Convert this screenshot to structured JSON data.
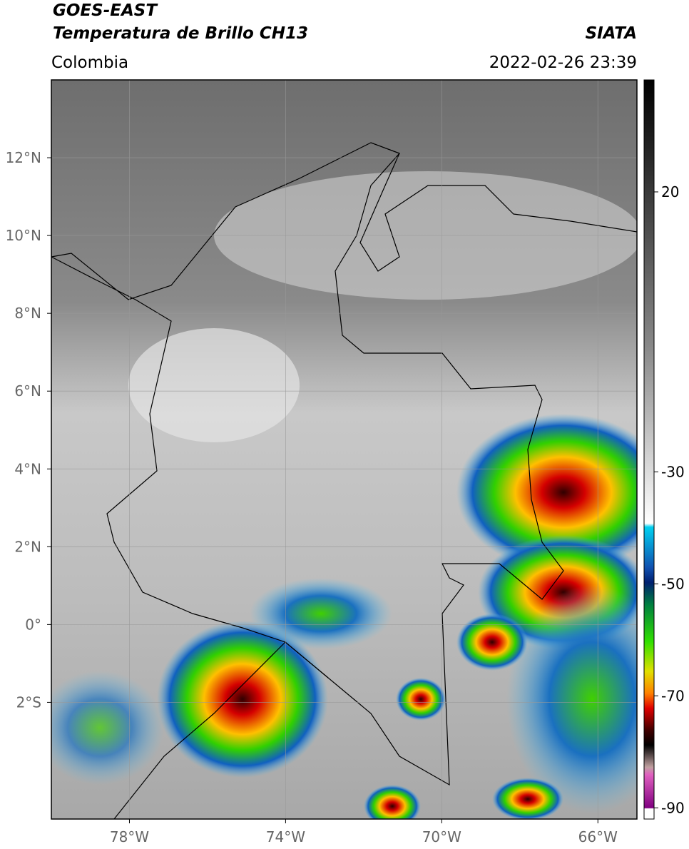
{
  "header": {
    "title": "GOES-EAST",
    "subtitle": "Temperatura de Brillo CH13",
    "source": "SIATA",
    "region": "Colombia",
    "datetime": "2022-02-26 23:39"
  },
  "map": {
    "xlim": [
      -80,
      -65
    ],
    "ylim": [
      -5,
      14
    ],
    "xticks": [
      {
        "value": -78,
        "label": "78°W"
      },
      {
        "value": -74,
        "label": "74°W"
      },
      {
        "value": -70,
        "label": "70°W"
      },
      {
        "value": -66,
        "label": "66°W"
      }
    ],
    "yticks": [
      {
        "value": 12,
        "label": "12°N"
      },
      {
        "value": 10,
        "label": "10°N"
      },
      {
        "value": 8,
        "label": "8°N"
      },
      {
        "value": 6,
        "label": "6°N"
      },
      {
        "value": 4,
        "label": "4°N"
      },
      {
        "value": 2,
        "label": "2°N"
      },
      {
        "value": 0,
        "label": "0°"
      },
      {
        "value": -2,
        "label": "2°S"
      }
    ]
  },
  "colorbar": {
    "lim": [
      -92,
      40
    ],
    "ticks": [
      20,
      -30,
      -50,
      -70,
      -90
    ]
  }
}
